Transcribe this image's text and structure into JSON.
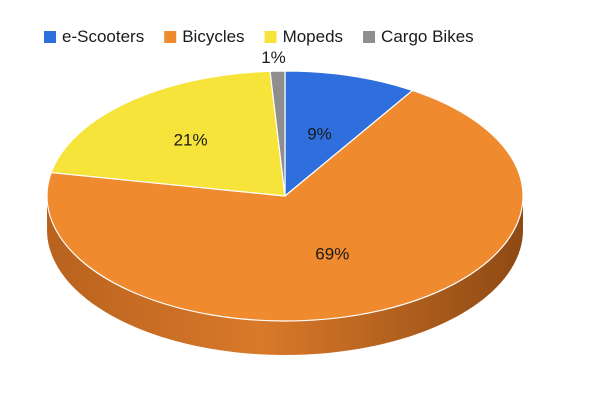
{
  "chart_data": {
    "type": "pie",
    "style": "3d",
    "legend_position": "top",
    "slices": [
      {
        "label": "e-Scooters",
        "value": 9,
        "display": "9%",
        "color": "#2f6fdd"
      },
      {
        "label": "Bicycles",
        "value": 69,
        "display": "69%",
        "color": "#f08a2e"
      },
      {
        "label": "Mopeds",
        "value": 21,
        "display": "21%",
        "color": "#f7e43a"
      },
      {
        "label": "Cargo Bikes",
        "value": 1,
        "display": "1%",
        "color": "#8e8e8e"
      }
    ]
  }
}
